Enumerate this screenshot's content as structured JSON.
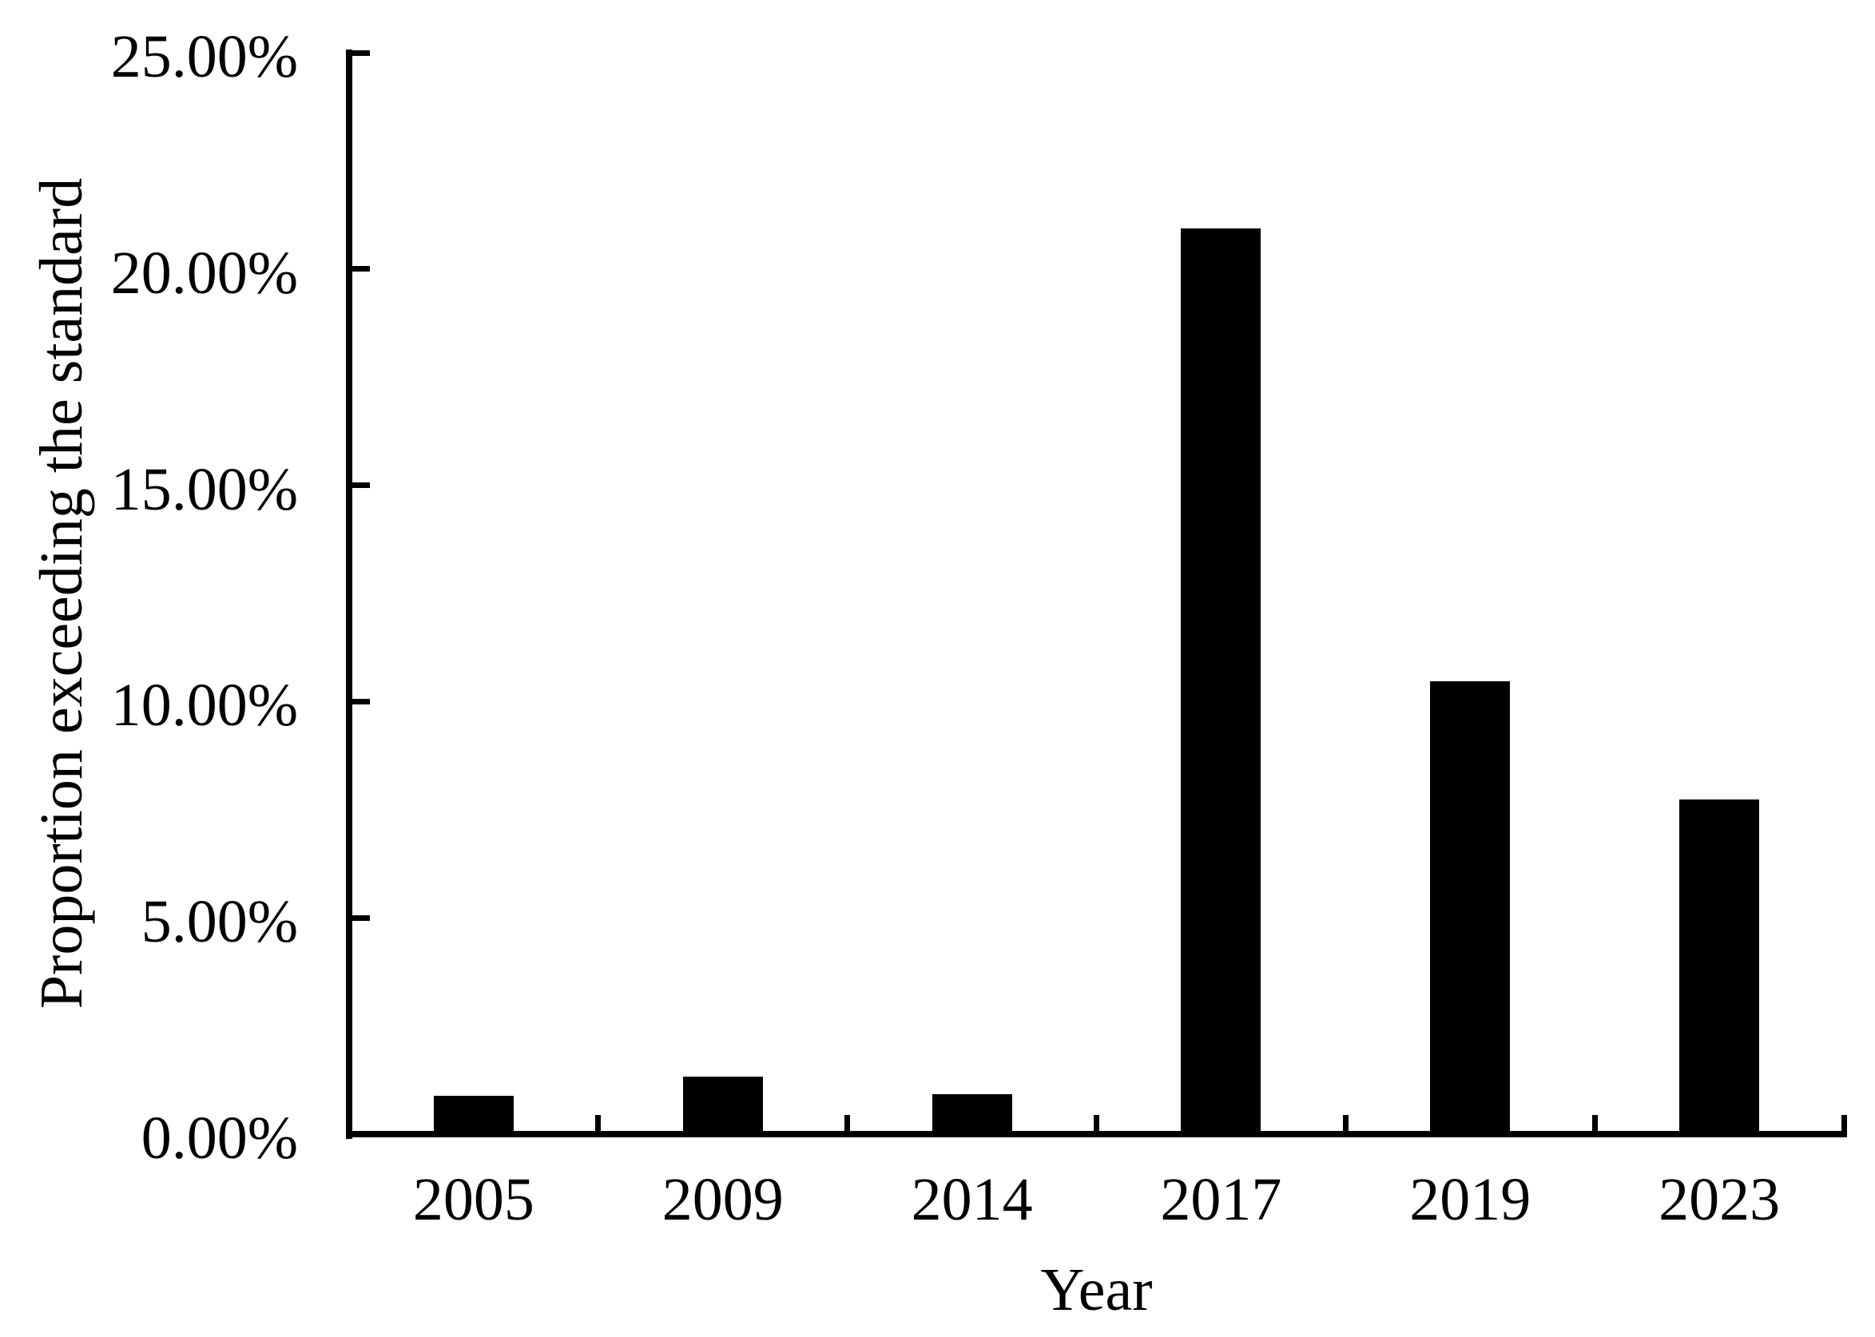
{
  "chart_data": {
    "type": "bar",
    "title": "",
    "categories": [
      "2005",
      "2009",
      "2014",
      "2017",
      "2019",
      "2023"
    ],
    "values": [
      0.89,
      1.33,
      0.93,
      20.94,
      10.47,
      7.73
    ],
    "series_unit": "%",
    "xlabel": "Year",
    "ylabel": "Proportion exceeding the standard",
    "ylim": [
      0,
      25
    ],
    "ytick_interval": 5,
    "ytick_labels": [
      "0.00%",
      "5.00%",
      "10.00%",
      "15.00%",
      "20.00%",
      "25.00%"
    ],
    "bar_color": "#000000",
    "axis_color": "#000000",
    "background_color": "#ffffff",
    "grid": false,
    "legend": "none"
  }
}
